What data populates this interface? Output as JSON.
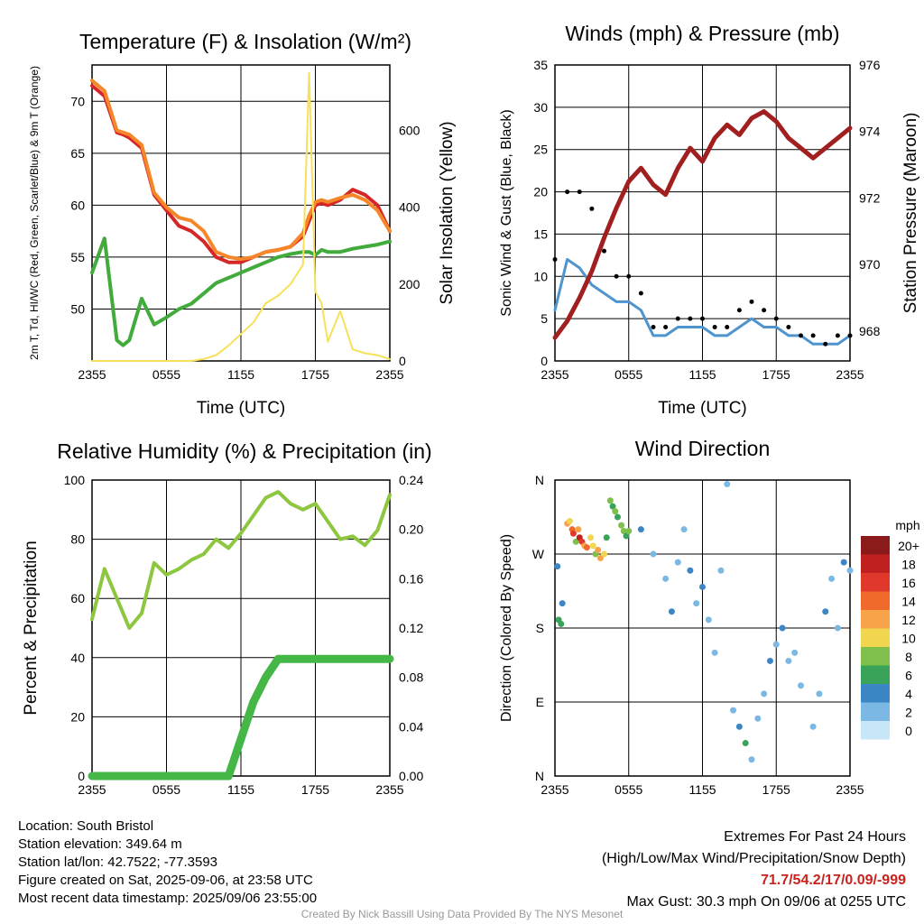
{
  "chart_data": [
    {
      "type": "line",
      "title": "Temperature (F) & Insolation (W/m²)",
      "xlabel": "Time (UTC)",
      "ylabel": "2m T, Td, HI/WC (Red, Green, Scarlet/Blue) & 9m T (Orange)",
      "y2label": "Solar Insolation (Yellow)",
      "x_ticks": [
        "2355",
        "0555",
        "1155",
        "1755",
        "2355"
      ],
      "ylim": [
        45,
        73.5
      ],
      "y_ticks": [
        50,
        55,
        60,
        65,
        70
      ],
      "y2lim": [
        0,
        770
      ],
      "y2_ticks": [
        0,
        200,
        400,
        600
      ],
      "x_hours": [
        0,
        1,
        2,
        2.5,
        3,
        4,
        5,
        6,
        7,
        8,
        9,
        10,
        11,
        12,
        13,
        14,
        15,
        16,
        17,
        17.5,
        18,
        18.5,
        19,
        20,
        21,
        22,
        23,
        24
      ],
      "series": [
        {
          "color": "#d62728",
          "axis": "left",
          "values": [
            71.5,
            70.5,
            67,
            66.8,
            66.5,
            65.5,
            61,
            59.5,
            58,
            57.5,
            56.5,
            55,
            54.5,
            54.5,
            55,
            55.5,
            55.7,
            56,
            57,
            58.5,
            60,
            60.2,
            60,
            60.5,
            61.5,
            61,
            60,
            57.5
          ]
        },
        {
          "color": "#f5872a",
          "axis": "left",
          "values": [
            72,
            71,
            67.2,
            67,
            66.8,
            65.8,
            61.2,
            59.8,
            58.8,
            58.5,
            57.5,
            55.5,
            55,
            54.8,
            55,
            55.5,
            55.7,
            56,
            57.3,
            59,
            60.3,
            60.5,
            60.3,
            60.7,
            61,
            60.5,
            59.5,
            57.5
          ]
        },
        {
          "color": "#41ab3c",
          "axis": "left",
          "values": [
            53.5,
            56.8,
            47,
            46.5,
            47,
            51,
            48.5,
            49.2,
            50,
            50.5,
            51.5,
            52.5,
            53,
            53.5,
            54,
            54.5,
            55,
            55.3,
            55.5,
            55.5,
            55.2,
            55.7,
            55.5,
            55.5,
            55.8,
            56,
            56.2,
            56.5
          ]
        },
        {
          "color": "#f7e05a",
          "axis": "right",
          "values": [
            0,
            0,
            0,
            0,
            0,
            0,
            0,
            0,
            0,
            0,
            5,
            15,
            40,
            70,
            100,
            150,
            170,
            200,
            250,
            750,
            180,
            150,
            50,
            130,
            30,
            20,
            15,
            5
          ]
        }
      ]
    },
    {
      "type": "line",
      "title": "Winds (mph) & Pressure (mb)",
      "xlabel": "Time (UTC)",
      "ylabel": "Sonic Wind & Gust (Blue, Black)",
      "y2label": "Station Pressure (Maroon)",
      "x_ticks": [
        "2355",
        "0555",
        "1155",
        "1755",
        "2355"
      ],
      "ylim": [
        0,
        35
      ],
      "y_ticks": [
        0,
        5,
        10,
        15,
        20,
        25,
        30,
        35
      ],
      "y2lim": [
        967.1,
        976
      ],
      "y2_ticks": [
        968,
        970,
        972,
        974,
        976
      ],
      "x_hours": [
        0,
        1,
        2,
        3,
        4,
        5,
        6,
        7,
        8,
        9,
        10,
        11,
        12,
        13,
        14,
        15,
        16,
        17,
        18,
        19,
        20,
        21,
        22,
        23,
        24
      ],
      "series": [
        {
          "name": "Wind",
          "color": "#4e94cf",
          "axis": "left",
          "values": [
            6,
            12,
            11,
            9,
            8,
            7,
            7,
            6,
            3,
            3,
            4,
            4,
            4,
            3,
            3,
            4,
            5,
            4,
            4,
            3,
            3,
            2,
            2,
            2,
            3
          ]
        },
        {
          "name": "Gust",
          "color": "#000000",
          "axis": "left",
          "values": [
            12,
            20,
            20,
            18,
            13,
            10,
            10,
            8,
            4,
            4,
            5,
            5,
            5,
            4,
            4,
            6,
            7,
            6,
            5,
            4,
            3,
            3,
            2,
            3,
            3
          ]
        },
        {
          "name": "Pressure",
          "color": "#a11f1f",
          "axis": "right",
          "values": [
            967.8,
            968.3,
            969,
            969.8,
            970.8,
            971.7,
            972.5,
            972.9,
            972.4,
            972.1,
            972.9,
            973.5,
            973.1,
            973.8,
            974.2,
            973.9,
            974.4,
            974.6,
            974.3,
            973.8,
            973.5,
            973.2,
            973.5,
            973.8,
            974.1
          ]
        }
      ]
    },
    {
      "type": "line",
      "title": "Relative Humidity (%) & Precipitation (in)",
      "xlabel": "",
      "ylabel": "Percent & Precipitation",
      "x_ticks": [
        "2355",
        "0555",
        "1155",
        "1755",
        "2355"
      ],
      "ylim": [
        0,
        100
      ],
      "y_ticks": [
        0,
        20,
        40,
        60,
        80,
        100
      ],
      "y2lim": [
        0,
        0.24
      ],
      "y2_ticks": [
        "0.00",
        "0.04",
        "0.08",
        "0.12",
        "0.16",
        "0.20",
        "0.24"
      ],
      "x_hours": [
        0,
        1,
        2,
        3,
        4,
        5,
        6,
        7,
        8,
        9,
        10,
        11,
        12,
        13,
        14,
        15,
        16,
        17,
        18,
        19,
        20,
        21,
        22,
        23,
        24
      ],
      "series": [
        {
          "name": "Relative Humidity",
          "color": "#8dc63f",
          "axis": "left",
          "values": [
            53,
            70,
            60,
            50,
            55,
            72,
            68,
            70,
            73,
            75,
            80,
            77,
            82,
            88,
            94,
            96,
            92,
            90,
            92,
            86,
            80,
            81,
            78,
            83,
            95
          ]
        },
        {
          "name": "Precipitation",
          "color": "#44b747",
          "axis": "right",
          "values": [
            0,
            0,
            0,
            0,
            0,
            0,
            0,
            0,
            0,
            0,
            0,
            0,
            0.03,
            0.06,
            0.08,
            0.095,
            0.095,
            0.095,
            0.095,
            0.095,
            0.095,
            0.095,
            0.095,
            0.095,
            0.095
          ]
        }
      ]
    },
    {
      "type": "scatter",
      "title": "Wind Direction",
      "xlabel": "",
      "ylabel": "Direction (Colored By Speed)",
      "x_ticks": [
        "2355",
        "0555",
        "1155",
        "1755",
        "2355"
      ],
      "y_ticks": [
        "N",
        "E",
        "S",
        "W",
        "N"
      ],
      "ylim": [
        0,
        360
      ],
      "legend": {
        "title": "mph",
        "labels": [
          "20+",
          "18",
          "16",
          "14",
          "12",
          "10",
          "8",
          "6",
          "4",
          "2",
          "0"
        ],
        "colors": [
          "#8b1a1a",
          "#c0201f",
          "#e0392b",
          "#f06a2b",
          "#f7a34a",
          "#f2d64f",
          "#7fbf4b",
          "#3aa35a",
          "#3d86c6",
          "#7bb8e4",
          "#c7e6f7"
        ],
        "position": "right"
      },
      "points": [
        [
          0.2,
          255,
          4
        ],
        [
          0.3,
          190,
          6
        ],
        [
          0.5,
          185,
          6
        ],
        [
          0.6,
          210,
          4
        ],
        [
          1.0,
          307,
          12
        ],
        [
          1.2,
          310,
          10
        ],
        [
          1.4,
          300,
          14
        ],
        [
          1.5,
          295,
          16
        ],
        [
          1.7,
          285,
          8
        ],
        [
          1.9,
          300,
          12
        ],
        [
          2.0,
          290,
          18
        ],
        [
          2.2,
          285,
          16
        ],
        [
          2.4,
          280,
          12
        ],
        [
          2.6,
          278,
          14
        ],
        [
          2.9,
          290,
          10
        ],
        [
          3.1,
          280,
          10
        ],
        [
          3.3,
          270,
          8
        ],
        [
          3.5,
          275,
          12
        ],
        [
          3.7,
          265,
          12
        ],
        [
          4.0,
          270,
          10
        ],
        [
          4.2,
          290,
          6
        ],
        [
          4.5,
          335,
          8
        ],
        [
          4.7,
          328,
          6
        ],
        [
          4.9,
          322,
          8
        ],
        [
          5.1,
          315,
          6
        ],
        [
          5.4,
          305,
          8
        ],
        [
          5.6,
          298,
          8
        ],
        [
          5.8,
          292,
          6
        ],
        [
          6.0,
          298,
          8
        ],
        [
          7.0,
          300,
          4
        ],
        [
          8.0,
          270,
          3
        ],
        [
          9.0,
          240,
          2
        ],
        [
          9.5,
          200,
          4
        ],
        [
          10.0,
          260,
          3
        ],
        [
          10.5,
          300,
          2
        ],
        [
          11.0,
          250,
          4
        ],
        [
          11.5,
          210,
          3
        ],
        [
          12.0,
          230,
          4
        ],
        [
          12.5,
          190,
          3
        ],
        [
          13.0,
          150,
          2
        ],
        [
          13.5,
          250,
          3
        ],
        [
          14.0,
          355,
          2
        ],
        [
          14.5,
          80,
          3
        ],
        [
          15.0,
          60,
          4
        ],
        [
          15.5,
          40,
          6
        ],
        [
          16.0,
          20,
          3
        ],
        [
          16.5,
          70,
          2
        ],
        [
          17.0,
          100,
          3
        ],
        [
          17.5,
          140,
          4
        ],
        [
          18.0,
          160,
          3
        ],
        [
          18.5,
          180,
          4
        ],
        [
          19.0,
          140,
          3
        ],
        [
          19.5,
          150,
          2
        ],
        [
          20.0,
          110,
          3
        ],
        [
          21.0,
          60,
          2
        ],
        [
          21.5,
          100,
          3
        ],
        [
          22.0,
          200,
          4
        ],
        [
          22.5,
          240,
          3
        ],
        [
          23.0,
          180,
          2
        ],
        [
          23.5,
          260,
          4
        ],
        [
          24.0,
          250,
          3
        ]
      ]
    }
  ],
  "footer": {
    "location": "Location: South Bristol",
    "elevation": "Station elevation: 349.64 m",
    "latlon": "Station lat/lon: 42.7522; -77.3593",
    "created": "Figure created on Sat, 2025-09-06, at 23:58 UTC",
    "recent": "Most recent data timestamp: 2025/09/06 23:55:00",
    "extremes_title": "Extremes For Past 24 Hours",
    "extremes_sub": "(High/Low/Max Wind/Precipitation/Snow Depth)",
    "extremes_values": "71.7/54.2/17/0.09/-999",
    "max_gust": "Max Gust: 30.3 mph On 09/06 at 0255 UTC",
    "credit": "Created By Nick Bassill Using Data Provided By The NYS Mesonet"
  }
}
